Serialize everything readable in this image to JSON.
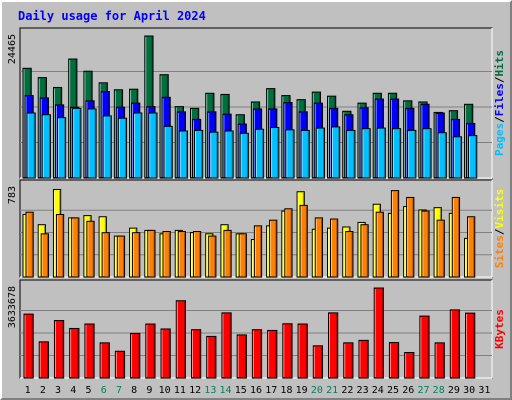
{
  "title": "Daily usage for April 2024",
  "colors": {
    "title": "#0000ff",
    "hits": "#006f3f",
    "files": "#0000ff",
    "pages": "#00c0ff",
    "visits": "#ffff00",
    "sites": "#ff8000",
    "kbytes": "#ff0000",
    "weekend_label": "#00805c",
    "weekday_label": "#000000",
    "plot_bg": "#c0c0c0",
    "gridline": "#808080"
  },
  "chart_data": [
    {
      "type": "bar",
      "panel": "hits-files-pages",
      "y_max_label": "24465",
      "ylim": [
        0,
        24465
      ],
      "grid": true,
      "legend": [
        {
          "label": "Pages",
          "color": "#00c0ff"
        },
        {
          "label": "Files",
          "color": "#0000ff"
        },
        {
          "label": "Hits",
          "color": "#006f3f"
        }
      ],
      "categories": [
        "1",
        "2",
        "3",
        "4",
        "5",
        "6",
        "7",
        "8",
        "9",
        "10",
        "11",
        "12",
        "13",
        "14",
        "15",
        "16",
        "17",
        "18",
        "19",
        "20",
        "21",
        "22",
        "23",
        "24",
        "25",
        "26",
        "27",
        "28",
        "29",
        "30",
        "31"
      ],
      "series": [
        {
          "name": "Hits",
          "values": [
            18900,
            17300,
            15600,
            20500,
            18400,
            16400,
            15200,
            15300,
            24465,
            17800,
            12300,
            12000,
            14600,
            14400,
            10900,
            13100,
            15400,
            14200,
            13500,
            14800,
            14100,
            11500,
            12900,
            14600,
            14600,
            13300,
            13100,
            11300,
            11600,
            12700,
            0
          ]
        },
        {
          "name": "Files",
          "values": [
            14200,
            13800,
            12600,
            12200,
            13300,
            14900,
            12200,
            12900,
            12300,
            13900,
            11400,
            10100,
            11400,
            11000,
            9300,
            11900,
            11900,
            13000,
            11400,
            12900,
            12000,
            10900,
            12100,
            13600,
            13600,
            12000,
            12700,
            11200,
            10100,
            9400,
            0
          ]
        },
        {
          "name": "Pages",
          "values": [
            11200,
            10900,
            10400,
            12000,
            11900,
            10700,
            10300,
            11200,
            11200,
            8900,
            8100,
            8200,
            7900,
            8100,
            7700,
            8400,
            8700,
            8300,
            8200,
            8600,
            8800,
            8200,
            8500,
            8600,
            8500,
            8200,
            8500,
            7800,
            7100,
            7300,
            0
          ]
        }
      ]
    },
    {
      "type": "bar",
      "panel": "visits-sites",
      "y_max_label": "783",
      "ylim": [
        0,
        783
      ],
      "grid": true,
      "legend": [
        {
          "label": "Sites",
          "color": "#ff8000"
        },
        {
          "label": "Visits",
          "color": "#ffff00"
        }
      ],
      "categories": [
        "1",
        "2",
        "3",
        "4",
        "5",
        "6",
        "7",
        "8",
        "9",
        "10",
        "11",
        "12",
        "13",
        "14",
        "15",
        "16",
        "17",
        "18",
        "19",
        "20",
        "21",
        "22",
        "23",
        "24",
        "25",
        "26",
        "27",
        "28",
        "29",
        "30",
        "31"
      ],
      "series": [
        {
          "name": "Visits",
          "values": [
            550,
            460,
            770,
            520,
            540,
            530,
            360,
            430,
            410,
            380,
            410,
            390,
            380,
            460,
            380,
            330,
            450,
            580,
            750,
            420,
            430,
            440,
            480,
            640,
            560,
            620,
            590,
            610,
            560,
            340,
            0
          ]
        },
        {
          "name": "Sites",
          "values": [
            570,
            380,
            550,
            520,
            490,
            390,
            360,
            390,
            410,
            400,
            400,
            400,
            360,
            410,
            380,
            450,
            500,
            600,
            630,
            520,
            510,
            400,
            460,
            570,
            760,
            700,
            580,
            500,
            700,
            530,
            0
          ]
        }
      ]
    },
    {
      "type": "bar",
      "panel": "kbytes",
      "y_max_label": "3633678",
      "ylim": [
        0,
        3633678
      ],
      "grid": true,
      "legend": [
        {
          "label": "KBytes",
          "color": "#ff0000"
        }
      ],
      "categories": [
        "1",
        "2",
        "3",
        "4",
        "5",
        "6",
        "7",
        "8",
        "9",
        "10",
        "11",
        "12",
        "13",
        "14",
        "15",
        "16",
        "17",
        "18",
        "19",
        "20",
        "21",
        "22",
        "23",
        "24",
        "25",
        "26",
        "27",
        "28",
        "29",
        "30",
        "31"
      ],
      "series": [
        {
          "name": "KBytes",
          "values": [
            2580000,
            1460000,
            2320000,
            2000000,
            2180000,
            1420000,
            1080000,
            1800000,
            2180000,
            1980000,
            3120000,
            1950000,
            1680000,
            2630000,
            1740000,
            1950000,
            1920000,
            2190000,
            2180000,
            1300000,
            2630000,
            1420000,
            1520000,
            3633678,
            1430000,
            1030000,
            2500000,
            1420000,
            2750000,
            2620000,
            0
          ]
        }
      ]
    }
  ],
  "x_labels": [
    {
      "text": "1",
      "weekend": false
    },
    {
      "text": "2",
      "weekend": false
    },
    {
      "text": "3",
      "weekend": false
    },
    {
      "text": "4",
      "weekend": false
    },
    {
      "text": "5",
      "weekend": false
    },
    {
      "text": "6",
      "weekend": true
    },
    {
      "text": "7",
      "weekend": true
    },
    {
      "text": "8",
      "weekend": false
    },
    {
      "text": "9",
      "weekend": false
    },
    {
      "text": "10",
      "weekend": false
    },
    {
      "text": "11",
      "weekend": false
    },
    {
      "text": "12",
      "weekend": false
    },
    {
      "text": "13",
      "weekend": true
    },
    {
      "text": "14",
      "weekend": true
    },
    {
      "text": "15",
      "weekend": false
    },
    {
      "text": "16",
      "weekend": false
    },
    {
      "text": "17",
      "weekend": false
    },
    {
      "text": "18",
      "weekend": false
    },
    {
      "text": "19",
      "weekend": false
    },
    {
      "text": "20",
      "weekend": true
    },
    {
      "text": "21",
      "weekend": true
    },
    {
      "text": "22",
      "weekend": false
    },
    {
      "text": "23",
      "weekend": false
    },
    {
      "text": "24",
      "weekend": false
    },
    {
      "text": "25",
      "weekend": false
    },
    {
      "text": "26",
      "weekend": false
    },
    {
      "text": "27",
      "weekend": true
    },
    {
      "text": "28",
      "weekend": true
    },
    {
      "text": "29",
      "weekend": false
    },
    {
      "text": "30",
      "weekend": false
    },
    {
      "text": "31",
      "weekend": false
    }
  ]
}
